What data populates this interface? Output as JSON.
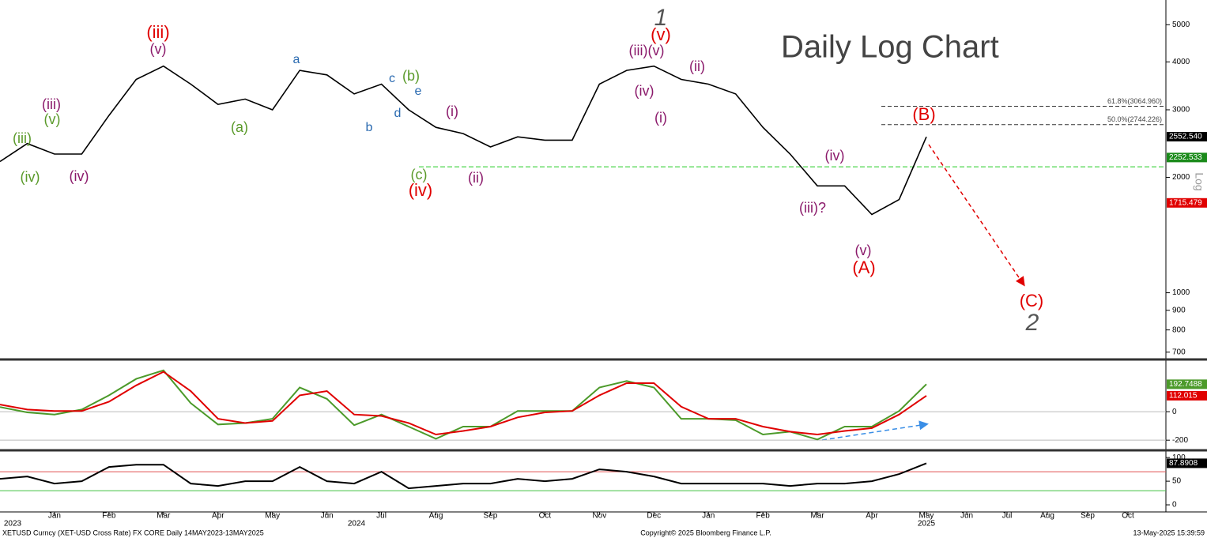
{
  "title": "Daily Log Chart",
  "scale_label": "Log",
  "footer": {
    "left": "XETUSD Curncy (XET-USD Cross Rate) FX CORE  Daily 14MAY2023-13MAY2025",
    "center": "Copyright© 2025 Bloomberg Finance L.P.",
    "right": "13-May-2025 15:39:59"
  },
  "chart_data": [
    {
      "type": "line",
      "log_scale": true,
      "ylim": [
        670,
        5800
      ],
      "yticks": [
        5000,
        4000,
        3000,
        2000,
        1000,
        900,
        800,
        700
      ],
      "series": [
        {
          "name": "XETUSD",
          "color": "#000000",
          "values": [
            2200,
            2450,
            2300,
            2300,
            2900,
            3600,
            3900,
            3500,
            3100,
            3200,
            3000,
            3800,
            3700,
            3300,
            3500,
            3000,
            2700,
            2600,
            2400,
            2550,
            2500,
            2500,
            3500,
            3800,
            3900,
            3600,
            3500,
            3300,
            2700,
            2300,
            1900,
            1900,
            1600,
            1750,
            2550,
            null,
            null,
            null,
            null,
            null,
            null,
            null,
            null,
            null,
            null
          ]
        }
      ],
      "fib_levels": [
        {
          "value": 3064.96,
          "label": "61.8%(3064.960)"
        },
        {
          "value": 2744.226,
          "label": "50.0%(2744.226)"
        }
      ],
      "support_level": 2130,
      "support_color": "#22cc22",
      "price_tags": [
        {
          "value": 2552.54,
          "label": "2552.540",
          "color": "#000000"
        },
        {
          "value": 2252.533,
          "label": "2252.533",
          "color": "#1a8a1a"
        },
        {
          "value": 1715.479,
          "label": "1715.479",
          "color": "#e00000"
        }
      ],
      "annotations": [
        {
          "text": "(iii)",
          "color": "#5a9a2a"
        },
        {
          "text": "(iv)",
          "color": "#5a9a2a"
        },
        {
          "text": "(v)",
          "color": "#5a9a2a"
        },
        {
          "text": "(a)",
          "color": "#5a9a2a"
        },
        {
          "text": "(b)",
          "color": "#5a9a2a"
        },
        {
          "text": "(c)",
          "color": "#5a9a2a"
        },
        {
          "text": "(iii)",
          "color": "#8b1a6b"
        },
        {
          "text": "(iv)",
          "color": "#8b1a6b"
        },
        {
          "text": "(v)",
          "color": "#8b1a6b"
        },
        {
          "text": "(i)",
          "color": "#8b1a6b"
        },
        {
          "text": "(ii)",
          "color": "#8b1a6b"
        },
        {
          "text": "(iii)(v)",
          "color": "#8b1a6b"
        },
        {
          "text": "(iv)",
          "color": "#8b1a6b"
        },
        {
          "text": "(i)",
          "color": "#8b1a6b"
        },
        {
          "text": "(ii)",
          "color": "#8b1a6b"
        },
        {
          "text": "(iv)",
          "color": "#8b1a6b"
        },
        {
          "text": "(iii)?",
          "color": "#8b1a6b"
        },
        {
          "text": "(v)",
          "color": "#8b1a6b"
        },
        {
          "text": "(iii)",
          "color": "#e00000"
        },
        {
          "text": "(iv)",
          "color": "#e00000"
        },
        {
          "text": "(v)",
          "color": "#e00000"
        },
        {
          "text": "(B)",
          "color": "#e00000"
        },
        {
          "text": "(A)",
          "color": "#e00000"
        },
        {
          "text": "(C)",
          "color": "#e00000"
        },
        {
          "text": "a",
          "color": "#2a6ab0"
        },
        {
          "text": "b",
          "color": "#2a6ab0"
        },
        {
          "text": "c",
          "color": "#2a6ab0"
        },
        {
          "text": "d",
          "color": "#2a6ab0"
        },
        {
          "text": "e",
          "color": "#2a6ab0"
        },
        {
          "text": "1",
          "color": "#555555"
        },
        {
          "text": "2",
          "color": "#555555"
        }
      ]
    },
    {
      "type": "line",
      "ylim": [
        -260,
        350
      ],
      "yticks": [
        0,
        -200
      ],
      "grid": true,
      "series": [
        {
          "name": "MACD",
          "color": "#4c9a2a",
          "values": [
            33,
            -5,
            -20,
            15,
            115,
            230,
            290,
            60,
            -90,
            -80,
            -50,
            170,
            90,
            -95,
            -20,
            -105,
            -190,
            -105,
            -105,
            5,
            5,
            5,
            170,
            215,
            170,
            -50,
            -50,
            -60,
            -160,
            -140,
            -195,
            -105,
            -105,
            5,
            193,
            null,
            null,
            null,
            null,
            null,
            null,
            null,
            null,
            null,
            null
          ]
        },
        {
          "name": "Signal",
          "color": "#e00000",
          "values": [
            50,
            15,
            5,
            5,
            70,
            185,
            280,
            145,
            -50,
            -80,
            -65,
            115,
            145,
            -20,
            -30,
            -80,
            -160,
            -135,
            -105,
            -40,
            -5,
            5,
            115,
            200,
            200,
            35,
            -50,
            -50,
            -105,
            -140,
            -160,
            -135,
            -115,
            -20,
            112,
            null,
            null,
            null,
            null,
            null,
            null,
            null,
            null,
            null,
            null
          ]
        }
      ],
      "tags": [
        {
          "value": 192.7488,
          "color": "#4c9a2a"
        },
        {
          "value": 112.015,
          "color": "#e00000"
        }
      ]
    },
    {
      "type": "line",
      "ylim": [
        -15,
        112
      ],
      "yticks": [
        100,
        50,
        0
      ],
      "levels": [
        {
          "value": 70,
          "color": "#e05050"
        },
        {
          "value": 30,
          "color": "#40c040"
        }
      ],
      "series": [
        {
          "name": "RSI",
          "color": "#000000",
          "values": [
            55,
            60,
            45,
            50,
            80,
            85,
            85,
            45,
            40,
            50,
            50,
            80,
            50,
            45,
            70,
            35,
            40,
            45,
            45,
            55,
            50,
            55,
            75,
            70,
            60,
            45,
            45,
            45,
            45,
            40,
            45,
            45,
            50,
            65,
            88,
            null,
            null,
            null,
            null,
            null,
            null,
            null,
            null,
            null,
            null
          ]
        }
      ],
      "tags": [
        {
          "value": 87.8908,
          "color": "#000000"
        }
      ],
      "categories": [
        null,
        null,
        "Jan",
        null,
        "Feb",
        null,
        "Mar",
        null,
        "Apr",
        null,
        "May",
        null,
        "Jun",
        null,
        "Jul",
        null,
        "Aug",
        null,
        "Sep",
        null,
        "Oct",
        null,
        "Nov",
        null,
        "Dec",
        null,
        "Jan",
        null,
        "Feb",
        null,
        "Mar",
        null,
        "Apr",
        null,
        "May",
        null,
        "Jun",
        null,
        "Jul",
        null,
        "Aug",
        null,
        "Sep",
        null,
        "Oct"
      ],
      "year_labels": [
        "2023",
        "2024",
        "2025"
      ]
    }
  ]
}
